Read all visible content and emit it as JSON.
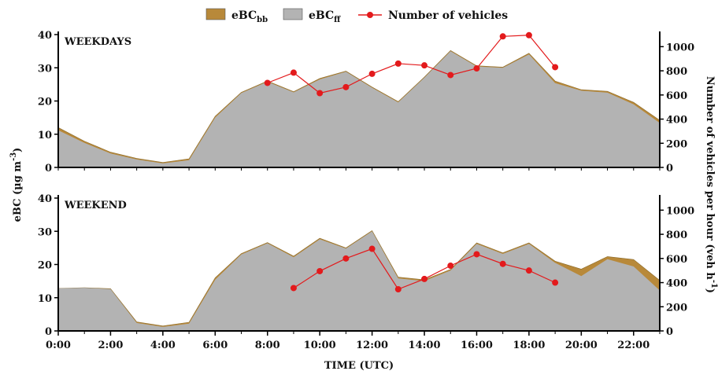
{
  "chart_data": {
    "type": "area",
    "legend": {
      "placement": "top-center",
      "entries": [
        {
          "base": "eBC",
          "sub": "bb",
          "color": "#b8893a",
          "kind": "area"
        },
        {
          "base": "eBC",
          "sub": "ff",
          "color": "#b3b3b3",
          "kind": "area"
        },
        {
          "base": "Number of vehicles",
          "sub": "",
          "color": "#e31a1c",
          "kind": "line"
        }
      ]
    },
    "x": {
      "label": "TIME (UTC)",
      "hours": [
        0,
        1,
        2,
        3,
        4,
        5,
        6,
        7,
        8,
        9,
        10,
        11,
        12,
        13,
        14,
        15,
        16,
        17,
        18,
        19,
        20,
        21,
        22,
        23
      ],
      "tick_hours": [
        0,
        2,
        4,
        6,
        8,
        10,
        12,
        14,
        16,
        18,
        20,
        22
      ],
      "tick_labels": [
        "0:00",
        "2:00",
        "4:00",
        "6:00",
        "8:00",
        "10:00",
        "12:00",
        "14:00",
        "16:00",
        "18:00",
        "20:00",
        "22:00"
      ],
      "range": [
        0,
        23
      ]
    },
    "y_left": {
      "label_base": "eBC (µg m",
      "label_sup": "-3",
      "label_end": ")",
      "range": [
        0,
        40
      ],
      "ticks": [
        0,
        10,
        20,
        30,
        40
      ]
    },
    "y_right": {
      "label_base": "Number of vehicles per hour (veh h",
      "label_sup": "-1",
      "label_end": ")",
      "range": [
        0,
        1100
      ],
      "ticks": [
        0,
        200,
        400,
        600,
        800,
        1000
      ]
    },
    "panels": [
      {
        "title": "WEEKDAYS",
        "ebc_ff": [
          11.2,
          7.4,
          4.2,
          2.4,
          1.2,
          2.2,
          15,
          22.4,
          25.8,
          22.6,
          26.5,
          28.8,
          24,
          19.6,
          27,
          35,
          30.4,
          30,
          34,
          25.4,
          23.1,
          22.5,
          19,
          13.4
        ],
        "ebc_total": [
          12,
          7.9,
          4.6,
          2.7,
          1.5,
          2.6,
          15.4,
          22.6,
          26,
          22.8,
          26.8,
          29,
          24.2,
          19.8,
          27.2,
          35.2,
          30.6,
          30.2,
          34.4,
          26,
          23.4,
          22.9,
          19.6,
          14.2
        ],
        "vehicles": {
          "hours": [
            8,
            9,
            10,
            11,
            12,
            13,
            14,
            15,
            16,
            17,
            18,
            19
          ],
          "values": [
            700,
            785,
            615,
            665,
            775,
            860,
            845,
            765,
            820,
            1085,
            1095,
            830
          ]
        }
      },
      {
        "title": "WEEKEND",
        "ebc_ff": [
          12.8,
          13,
          12.6,
          2.4,
          1.2,
          2.2,
          15.4,
          23,
          26.4,
          22.2,
          27.6,
          24.8,
          30,
          15.8,
          15,
          18.2,
          26.2,
          23.2,
          26.2,
          20.5,
          16.5,
          21.6,
          19.4,
          12.2
        ],
        "ebc_total": [
          12.8,
          13,
          12.7,
          2.7,
          1.5,
          2.6,
          16,
          23.3,
          26.6,
          22.5,
          27.9,
          25,
          30.2,
          16.2,
          15.4,
          18.5,
          26.5,
          23.5,
          26.5,
          21,
          18.6,
          22.4,
          21.5,
          15.2
        ],
        "vehicles": {
          "hours": [
            9,
            10,
            11,
            12,
            13,
            14,
            15,
            16,
            17,
            18,
            19
          ],
          "values": [
            355,
            495,
            600,
            680,
            345,
            430,
            540,
            635,
            555,
            500,
            400
          ]
        }
      }
    ]
  }
}
